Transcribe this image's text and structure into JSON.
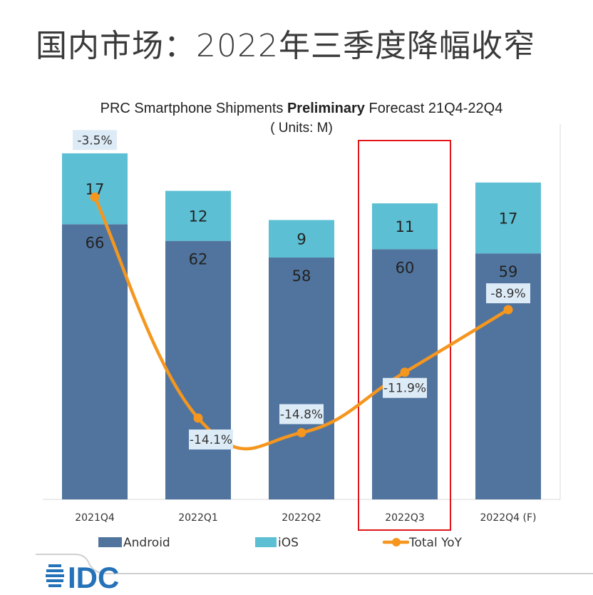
{
  "page": {
    "title": "国内市场：2022年三季度降幅收窄"
  },
  "logo": {
    "text": "IDC",
    "color": "#2472B8"
  },
  "chart_data": {
    "type": "bar",
    "stacked": true,
    "title_prefix": "PRC Smartphone Shipments ",
    "title_bold": "Preliminary",
    "title_suffix": " Forecast 21Q4-22Q4",
    "subtitle": "( Units: M)",
    "categories": [
      "2021Q4",
      "2022Q1",
      "2022Q2",
      "2022Q3",
      "2022Q4 (F)"
    ],
    "ylim": [
      0,
      90
    ],
    "secondary_ylim": [
      -18,
      0
    ],
    "grid": false,
    "legend_placement": "bottom",
    "highlighted_category": "2022Q3",
    "highlight_color": "#E0161B",
    "series": [
      {
        "name": "Android",
        "type": "bar",
        "color": "#50749E",
        "values": [
          66,
          62,
          58,
          60,
          59
        ]
      },
      {
        "name": "iOS",
        "type": "bar",
        "color": "#5CBFD3",
        "values": [
          17,
          12,
          9,
          11,
          17
        ]
      },
      {
        "name": "Total YoY",
        "type": "line",
        "axis": "secondary",
        "color": "#F5961E",
        "values": [
          -3.5,
          -14.1,
          -14.8,
          -11.9,
          -8.9
        ],
        "labels": [
          "-3.5%",
          "-14.1%",
          "-14.8%",
          "-11.9%",
          "-8.9%"
        ]
      }
    ]
  }
}
